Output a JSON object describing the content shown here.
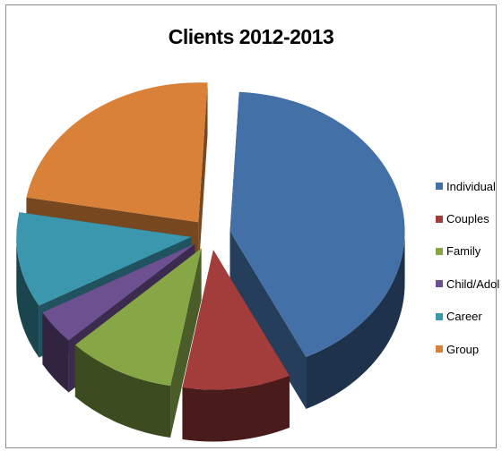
{
  "chart_data": {
    "type": "pie",
    "title": "Clients 2012-2013",
    "legend_position": "right",
    "exploded": true,
    "three_d": true,
    "categories": [
      "Individual",
      "Couples",
      "Family",
      "Child/Adol",
      "Career",
      "Group"
    ],
    "values": [
      42,
      10,
      10,
      4,
      11,
      23
    ],
    "colors": {
      "Individual": "#4470A8",
      "Couples": "#A33D3B",
      "Family": "#87A747",
      "Child/Adol": "#6C5090",
      "Career": "#3A97AD",
      "Group": "#D98139"
    }
  }
}
